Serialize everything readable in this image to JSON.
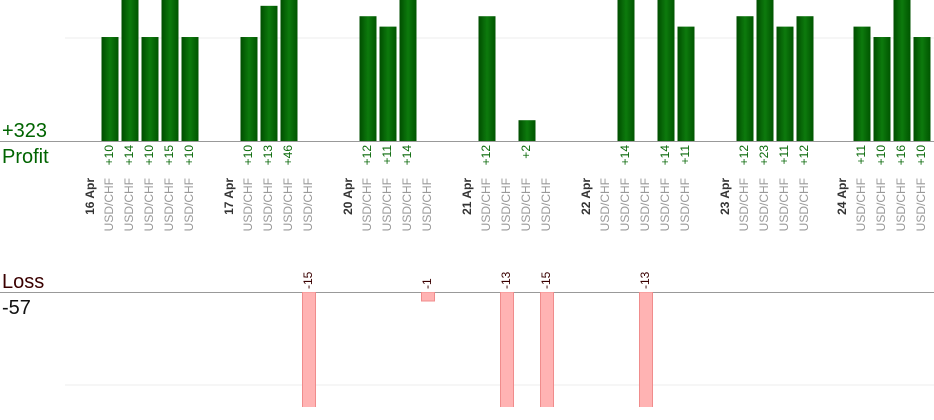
{
  "chart_data": {
    "type": "profit-loss",
    "profit_title": "Profit",
    "profit_total": "+323",
    "loss_title": "Loss",
    "loss_total": "-57",
    "profit_ylim": [
      0,
      13.56
    ],
    "loss_ylim": [
      -12.78,
      0
    ],
    "profit_color": "#0a6a0a",
    "loss_color": "#ffb3b3",
    "groups": [
      {
        "date": "16 Apr",
        "items": [
          {
            "symbol": "USD/CHF",
            "value": 10,
            "label": "+10"
          },
          {
            "symbol": "USD/CHF",
            "value": 14,
            "label": "+14"
          },
          {
            "symbol": "USD/CHF",
            "value": 10,
            "label": "+10"
          },
          {
            "symbol": "USD/CHF",
            "value": 15,
            "label": "+15"
          },
          {
            "symbol": "USD/CHF",
            "value": 10,
            "label": "+10"
          }
        ]
      },
      {
        "date": "17 Apr",
        "items": [
          {
            "symbol": "USD/CHF",
            "value": 10,
            "label": "+10"
          },
          {
            "symbol": "USD/CHF",
            "value": 13,
            "label": "+13"
          },
          {
            "symbol": "USD/CHF",
            "value": 46,
            "label": "+46"
          },
          {
            "symbol": "USD/CHF",
            "value": -15,
            "label": "-15"
          }
        ]
      },
      {
        "date": "20 Apr",
        "items": [
          {
            "symbol": "USD/CHF",
            "value": 12,
            "label": "+12"
          },
          {
            "symbol": "USD/CHF",
            "value": 11,
            "label": "+11"
          },
          {
            "symbol": "USD/CHF",
            "value": 14,
            "label": "+14"
          },
          {
            "symbol": "USD/CHF",
            "value": -1,
            "label": "-1"
          }
        ]
      },
      {
        "date": "21 Apr",
        "items": [
          {
            "symbol": "USD/CHF",
            "value": 12,
            "label": "+12"
          },
          {
            "symbol": "USD/CHF",
            "value": -13,
            "label": "-13"
          },
          {
            "symbol": "USD/CHF",
            "value": 2,
            "label": "+2"
          },
          {
            "symbol": "USD/CHF",
            "value": -15,
            "label": "-15"
          }
        ]
      },
      {
        "date": "22 Apr",
        "items": [
          {
            "symbol": "USD/CHF",
            "value": null
          },
          {
            "symbol": "USD/CHF",
            "value": 14,
            "label": "+14"
          },
          {
            "symbol": "USD/CHF",
            "value": -13,
            "label": "-13"
          },
          {
            "symbol": "USD/CHF",
            "value": 14,
            "label": "+14"
          },
          {
            "symbol": "USD/CHF",
            "value": 11,
            "label": "+11"
          }
        ]
      },
      {
        "date": "23 Apr",
        "items": [
          {
            "symbol": "USD/CHF",
            "value": 12,
            "label": "+12"
          },
          {
            "symbol": "USD/CHF",
            "value": 23,
            "label": "+23"
          },
          {
            "symbol": "USD/CHF",
            "value": 11,
            "label": "+11"
          },
          {
            "symbol": "USD/CHF",
            "value": 12,
            "label": "+12"
          }
        ]
      },
      {
        "date": "24 Apr",
        "items": [
          {
            "symbol": "USD/CHF",
            "value": 11,
            "label": "+11"
          },
          {
            "symbol": "USD/CHF",
            "value": 10,
            "label": "+10"
          },
          {
            "symbol": "USD/CHF",
            "value": 16,
            "label": "+16"
          },
          {
            "symbol": "USD/CHF",
            "value": 10,
            "label": "+10"
          }
        ]
      }
    ]
  }
}
